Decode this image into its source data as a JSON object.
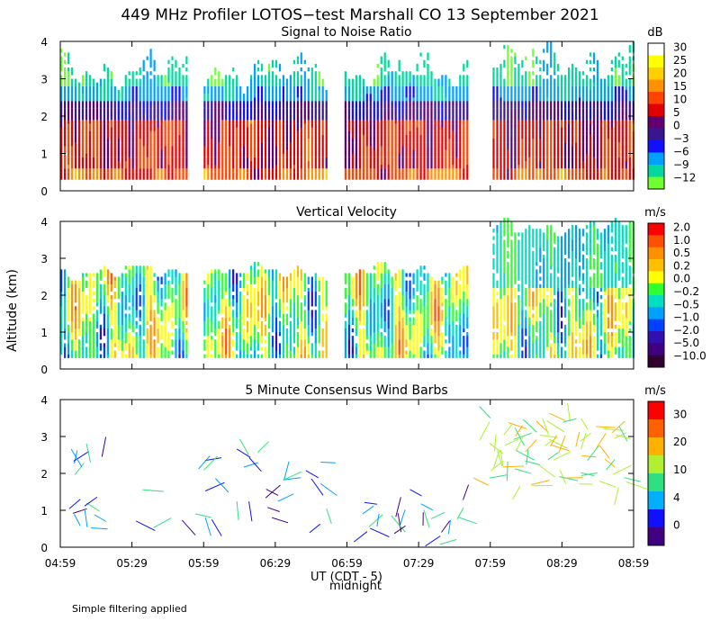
{
  "title": "449 MHz Profiler LOTOS−test Marshall CO 13 September 2021",
  "ylabel": "Altitude (km)",
  "xlabel": "UT  (CDT - 5)",
  "midnight_label": "midnight",
  "footer": "Simple filtering applied",
  "chart_data": {
    "x_ticks": [
      "04:59",
      "05:29",
      "05:59",
      "06:29",
      "06:59",
      "07:29",
      "07:59",
      "08:29",
      "08:59"
    ],
    "y_ticks": [
      "0",
      "1",
      "2",
      "3",
      "4"
    ],
    "x_range_minutes": [
      0,
      240
    ],
    "ylim": [
      0,
      4
    ],
    "panels": [
      {
        "type": "heatmap",
        "title": "Signal to Noise Ratio",
        "unit": "dB",
        "colorbar": {
          "labels": [
            "30",
            "25",
            "20",
            "15",
            "10",
            "5",
            "0",
            "−3",
            "−6",
            "−9",
            "−12"
          ],
          "colors": [
            "#ffffff",
            "#ffff00",
            "#ffd000",
            "#ff9000",
            "#ff4400",
            "#e00000",
            "#600070",
            "#3a1590",
            "#1010ff",
            "#00a0ff",
            "#00d8a0",
            "#70ff30"
          ]
        },
        "segments": [
          [
            0,
            53
          ],
          [
            60,
            112
          ],
          [
            119,
            171
          ],
          [
            181,
            240
          ]
        ]
      },
      {
        "type": "heatmap",
        "title": "Vertical Velocity",
        "unit": "m/s",
        "colorbar": {
          "labels": [
            "2.0",
            "1.0",
            "0.5",
            "0.2",
            "0.0",
            "−0.2",
            "−0.5",
            "−1.0",
            "−2.0",
            "−5.0",
            "−10.0"
          ],
          "colors": [
            "#ff0000",
            "#ff5000",
            "#ff9000",
            "#ffc000",
            "#ffff00",
            "#30ff30",
            "#00e0c0",
            "#00a0ff",
            "#0040ff",
            "#3010b0",
            "#400080",
            "#300030"
          ]
        },
        "segments": [
          [
            0,
            53
          ],
          [
            60,
            112
          ],
          [
            119,
            171
          ],
          [
            181,
            240
          ]
        ]
      },
      {
        "type": "wind_barbs",
        "title": "5 Minute Consensus Wind Barbs",
        "unit": "m/s",
        "colorbar": {
          "labels": [
            "30",
            "20",
            "10",
            "4",
            "0"
          ],
          "colors": [
            "#ff0000",
            "#ff6000",
            "#ffb000",
            "#b0f030",
            "#30e080",
            "#00b0ff",
            "#1010ff",
            "#400080"
          ]
        }
      }
    ]
  }
}
